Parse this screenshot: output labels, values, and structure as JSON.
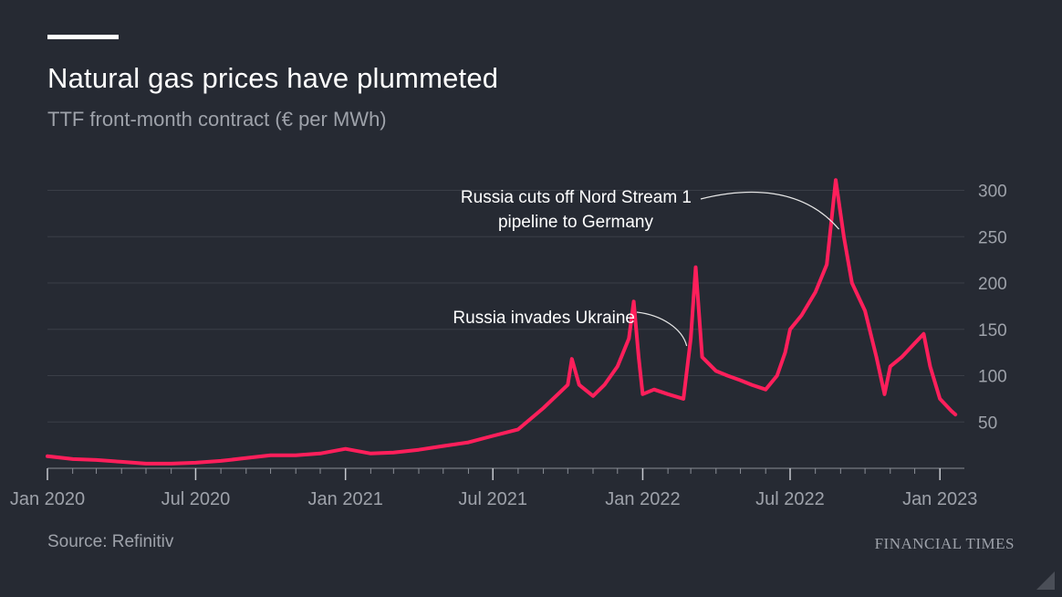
{
  "header": {
    "title": "Natural gas prices have plummeted",
    "subtitle": "TTF front-month contract (€ per MWh)"
  },
  "footer": {
    "source": "Source: Refinitiv",
    "brand": "FINANCIAL TIMES"
  },
  "colors": {
    "background": "#262a33",
    "line": "#ff1f5b",
    "grid": "#3a3e47",
    "axis_text": "#9ea2aa",
    "annotation_text": "#ffffff"
  },
  "chart_data": {
    "type": "line",
    "title": "Natural gas prices have plummeted",
    "subtitle": "TTF front-month contract (€ per MWh)",
    "xlabel": "",
    "ylabel": "",
    "x_range": [
      "2020-01-01",
      "2023-01-31"
    ],
    "ylim": [
      0,
      320
    ],
    "y_ticks": [
      50,
      100,
      150,
      200,
      250,
      300
    ],
    "y_axis_position": "right",
    "grid": true,
    "x_ticks": [
      {
        "date": "2020-01-01",
        "label": "Jan 2020"
      },
      {
        "date": "2020-07-01",
        "label": "Jul 2020"
      },
      {
        "date": "2021-01-01",
        "label": "Jan 2021"
      },
      {
        "date": "2021-07-01",
        "label": "Jul 2021"
      },
      {
        "date": "2022-01-01",
        "label": "Jan 2022"
      },
      {
        "date": "2022-07-01",
        "label": "Jul 2022"
      },
      {
        "date": "2023-01-01",
        "label": "Jan 2023"
      }
    ],
    "series": [
      {
        "values": [
          [
            "2020-01-01",
            13
          ],
          [
            "2020-02-01",
            10
          ],
          [
            "2020-03-01",
            9
          ],
          [
            "2020-04-01",
            7
          ],
          [
            "2020-05-01",
            5
          ],
          [
            "2020-06-01",
            5
          ],
          [
            "2020-07-01",
            6
          ],
          [
            "2020-08-01",
            8
          ],
          [
            "2020-09-01",
            11
          ],
          [
            "2020-10-01",
            14
          ],
          [
            "2020-11-01",
            14
          ],
          [
            "2020-12-01",
            16
          ],
          [
            "2021-01-01",
            21
          ],
          [
            "2021-02-01",
            16
          ],
          [
            "2021-03-01",
            17
          ],
          [
            "2021-04-01",
            20
          ],
          [
            "2021-05-01",
            24
          ],
          [
            "2021-06-01",
            28
          ],
          [
            "2021-07-01",
            35
          ],
          [
            "2021-08-01",
            42
          ],
          [
            "2021-09-01",
            65
          ],
          [
            "2021-10-01",
            90
          ],
          [
            "2021-10-06",
            118
          ],
          [
            "2021-10-15",
            90
          ],
          [
            "2021-11-01",
            78
          ],
          [
            "2021-11-15",
            90
          ],
          [
            "2021-12-01",
            110
          ],
          [
            "2021-12-15",
            140
          ],
          [
            "2021-12-21",
            180
          ],
          [
            "2021-12-27",
            120
          ],
          [
            "2022-01-01",
            80
          ],
          [
            "2022-01-15",
            85
          ],
          [
            "2022-02-01",
            80
          ],
          [
            "2022-02-20",
            75
          ],
          [
            "2022-03-01",
            140
          ],
          [
            "2022-03-07",
            217
          ],
          [
            "2022-03-15",
            120
          ],
          [
            "2022-04-01",
            105
          ],
          [
            "2022-04-15",
            100
          ],
          [
            "2022-05-01",
            95
          ],
          [
            "2022-05-15",
            90
          ],
          [
            "2022-06-01",
            85
          ],
          [
            "2022-06-15",
            100
          ],
          [
            "2022-06-25",
            125
          ],
          [
            "2022-07-01",
            150
          ],
          [
            "2022-07-15",
            165
          ],
          [
            "2022-08-01",
            190
          ],
          [
            "2022-08-15",
            220
          ],
          [
            "2022-08-26",
            311
          ],
          [
            "2022-09-05",
            250
          ],
          [
            "2022-09-15",
            200
          ],
          [
            "2022-10-01",
            170
          ],
          [
            "2022-10-15",
            120
          ],
          [
            "2022-10-25",
            80
          ],
          [
            "2022-11-01",
            110
          ],
          [
            "2022-11-15",
            120
          ],
          [
            "2022-12-01",
            135
          ],
          [
            "2022-12-12",
            145
          ],
          [
            "2022-12-20",
            110
          ],
          [
            "2023-01-01",
            75
          ],
          [
            "2023-01-15",
            62
          ],
          [
            "2023-01-20",
            58
          ]
        ]
      }
    ],
    "annotations": [
      {
        "text_lines": [
          "Russia cuts off Nord Stream 1",
          "pipeline to Germany"
        ],
        "date": "2022-08-30",
        "value": 258
      },
      {
        "text_lines": [
          "Russia invades Ukraine"
        ],
        "date": "2022-02-24",
        "value": 132
      }
    ]
  }
}
